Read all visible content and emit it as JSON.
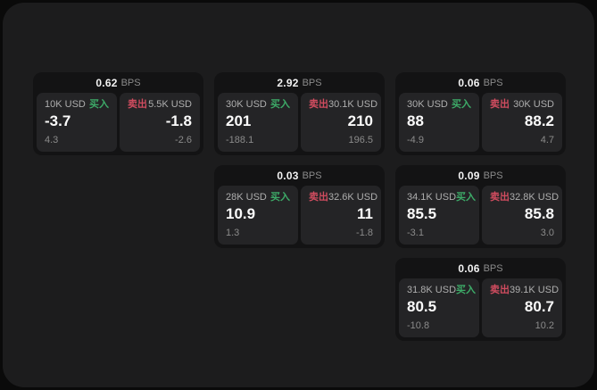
{
  "colors": {
    "buy_green": "#3dab68",
    "sell_red": "#d04c5f",
    "frame_bg": "#1c1c1d",
    "card_bg": "#131314",
    "panel_bg": "#242426"
  },
  "cards": [
    {
      "bps_value": "0.62",
      "bps_unit": "BPS",
      "buy": {
        "amount": "10K USD",
        "label": "买入",
        "main": "-3.7",
        "sub": "4.3"
      },
      "sell": {
        "label": "卖出",
        "amount": "5.5K USD",
        "main": "-1.8",
        "sub": "-2.6"
      }
    },
    {
      "bps_value": "2.92",
      "bps_unit": "BPS",
      "buy": {
        "amount": "30K USD",
        "label": "买入",
        "main": "201",
        "sub": "-188.1"
      },
      "sell": {
        "label": "卖出",
        "amount": "30.1K USD",
        "main": "210",
        "sub": "196.5"
      }
    },
    {
      "bps_value": "0.06",
      "bps_unit": "BPS",
      "buy": {
        "amount": "30K USD",
        "label": "买入",
        "main": "88",
        "sub": "-4.9"
      },
      "sell": {
        "label": "卖出",
        "amount": "30K USD",
        "main": "88.2",
        "sub": "4.7"
      }
    },
    {
      "bps_value": "0.03",
      "bps_unit": "BPS",
      "buy": {
        "amount": "28K USD",
        "label": "买入",
        "main": "10.9",
        "sub": "1.3"
      },
      "sell": {
        "label": "卖出",
        "amount": "32.6K USD",
        "main": "11",
        "sub": "-1.8"
      }
    },
    {
      "bps_value": "0.09",
      "bps_unit": "BPS",
      "buy": {
        "amount": "34.1K USD",
        "label": "买入",
        "main": "85.5",
        "sub": "-3.1"
      },
      "sell": {
        "label": "卖出",
        "amount": "32.8K USD",
        "main": "85.8",
        "sub": "3.0"
      }
    },
    {
      "bps_value": "0.06",
      "bps_unit": "BPS",
      "buy": {
        "amount": "31.8K USD",
        "label": "买入",
        "main": "80.5",
        "sub": "-10.8"
      },
      "sell": {
        "label": "卖出",
        "amount": "39.1K USD",
        "main": "80.7",
        "sub": "10.2"
      }
    }
  ]
}
